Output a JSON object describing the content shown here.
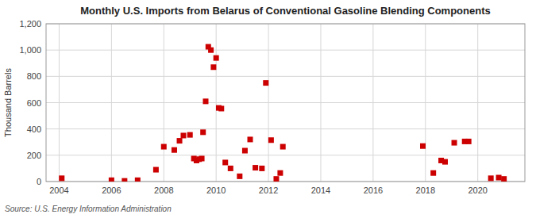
{
  "chart_data": {
    "type": "scatter",
    "title": "Monthly U.S. Imports from Belarus of Conventional Gasoline Blending Components",
    "ylabel": "Thousand Barrels",
    "annotations": [
      "Source: U.S. Energy Information Administration"
    ],
    "color": "#cc0000",
    "marker": "square",
    "grid": true,
    "xlim": [
      2003.5,
      2021.8
    ],
    "ylim": [
      0,
      1200
    ],
    "xticks": [
      2004,
      2006,
      2008,
      2010,
      2012,
      2014,
      2016,
      2018,
      2020
    ],
    "yticks": [
      0,
      200,
      400,
      600,
      800,
      {
        "value": 1000,
        "label": "1,000"
      },
      {
        "value": 1200,
        "label": "1,200"
      }
    ],
    "x": [
      2004.1,
      2006.0,
      2006.5,
      2007.0,
      2007.7,
      2008.0,
      2008.4,
      2008.6,
      2008.75,
      2009.0,
      2009.15,
      2009.25,
      2009.35,
      2009.45,
      2009.5,
      2009.6,
      2009.7,
      2009.8,
      2009.9,
      2010.0,
      2010.1,
      2010.2,
      2010.35,
      2010.55,
      2010.9,
      2011.1,
      2011.3,
      2011.5,
      2011.75,
      2011.9,
      2012.1,
      2012.3,
      2012.45,
      2012.55,
      2017.9,
      2018.3,
      2018.6,
      2018.75,
      2019.1,
      2019.5,
      2019.65,
      2020.5,
      2020.8,
      2021.0
    ],
    "values": [
      25,
      10,
      5,
      10,
      90,
      265,
      240,
      310,
      350,
      355,
      175,
      160,
      170,
      175,
      375,
      610,
      1025,
      1000,
      870,
      940,
      560,
      555,
      145,
      100,
      40,
      235,
      320,
      105,
      100,
      750,
      315,
      20,
      65,
      265,
      270,
      65,
      160,
      150,
      295,
      305,
      305,
      25,
      30,
      20
    ]
  }
}
